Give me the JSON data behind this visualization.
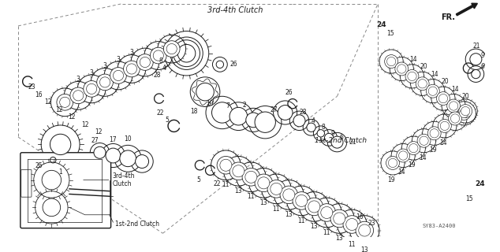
{
  "bg_color": "#ffffff",
  "line_color": "#1a1a1a",
  "dash_color": "#888888",
  "title_3rd4th": "3rd-4th Clutch",
  "title_1st2nd": "1st-2nd Clutch",
  "label_3rd4th": "3rd-4th\nClutch",
  "label_1st2nd": "1st-2nd Clutch",
  "fr_label": "FR.",
  "diagram_code": "SY83-A2400",
  "figw": 6.34,
  "figh": 3.2,
  "dpi": 100
}
